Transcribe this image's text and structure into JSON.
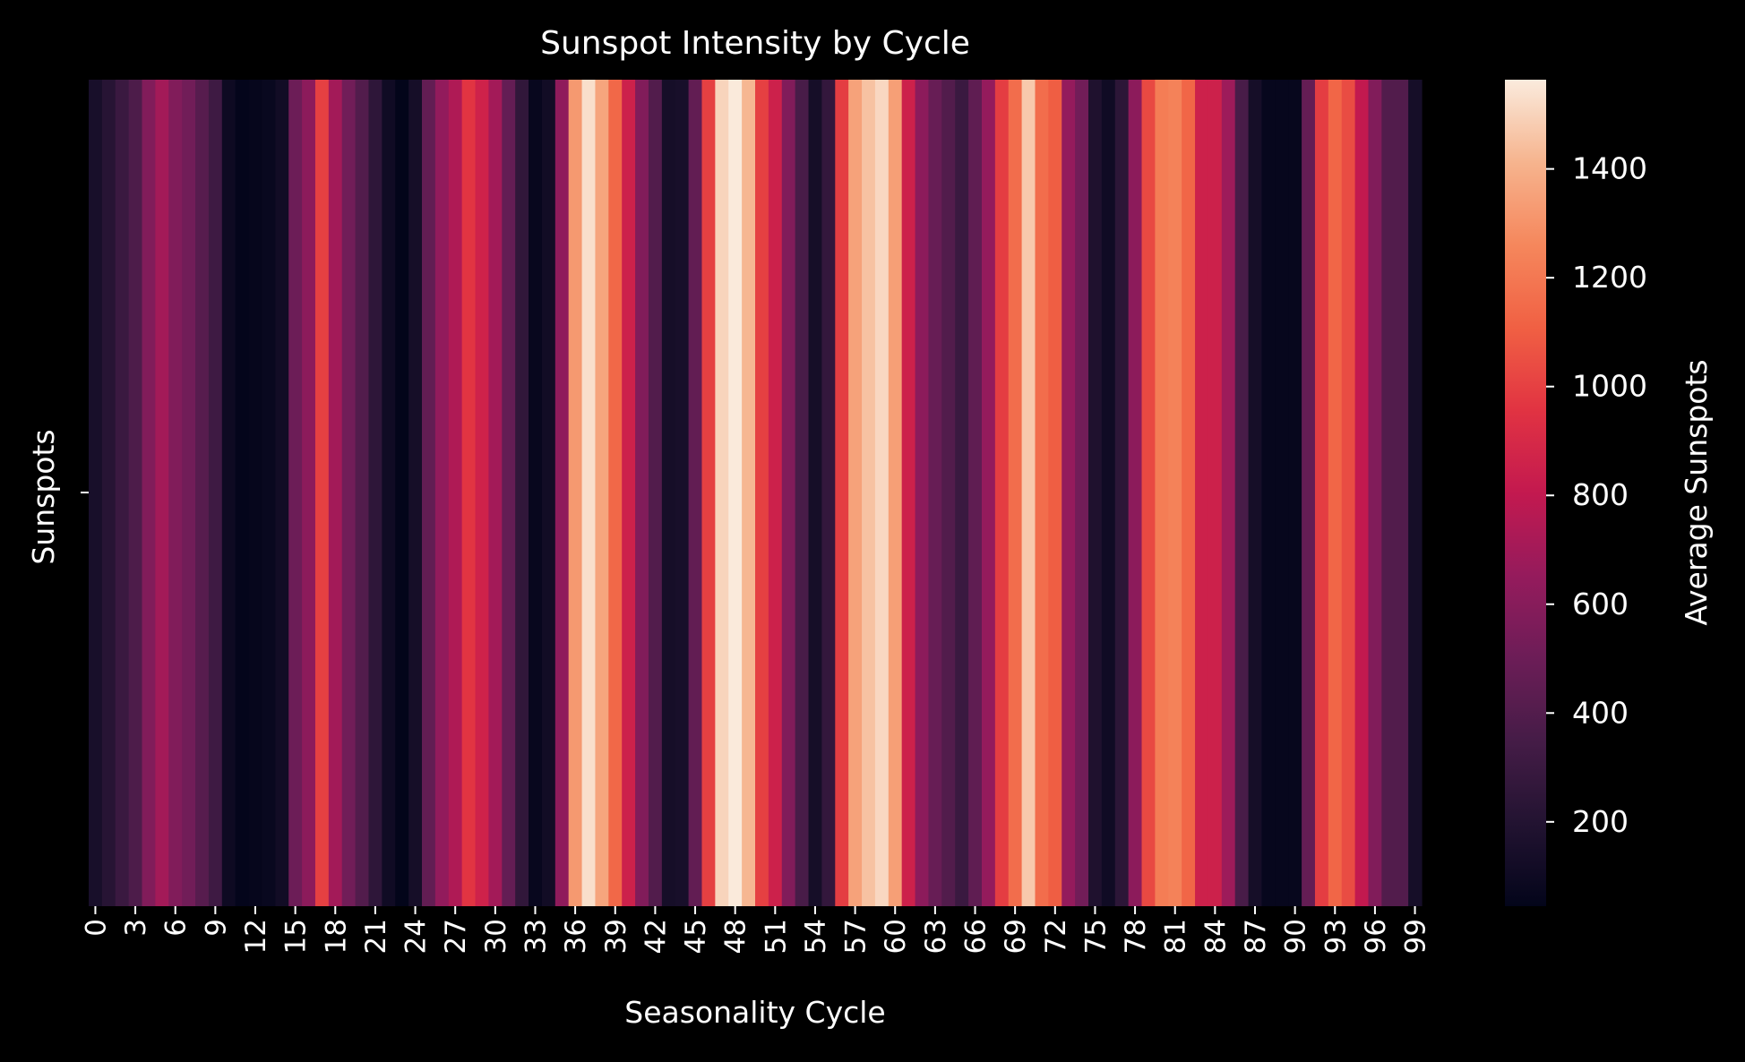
{
  "chart_data": {
    "type": "heatmap",
    "title": "Sunspot Intensity by Cycle",
    "xlabel": "Seasonality Cycle",
    "ylabel": "Sunspots",
    "colorbar_label": "Average Sunspots",
    "colormap": "rocket",
    "vmin": 45,
    "vmax": 1564,
    "colorbar_ticks": [
      200,
      400,
      600,
      800,
      1000,
      1200,
      1400
    ],
    "x_tick_labels": [
      "0",
      "3",
      "6",
      "9",
      "12",
      "15",
      "18",
      "21",
      "24",
      "27",
      "30",
      "33",
      "36",
      "39",
      "42",
      "45",
      "48",
      "51",
      "54",
      "57",
      "60",
      "63",
      "66",
      "69",
      "72",
      "75",
      "78",
      "81",
      "84",
      "87",
      "90",
      "93",
      "96",
      "99"
    ],
    "x": [
      0,
      1,
      2,
      3,
      4,
      5,
      6,
      7,
      8,
      9,
      10,
      11,
      12,
      13,
      14,
      15,
      16,
      17,
      18,
      19,
      20,
      21,
      22,
      23,
      24,
      25,
      26,
      27,
      28,
      29,
      30,
      31,
      32,
      33,
      34,
      35,
      36,
      37,
      38,
      39,
      40,
      41,
      42,
      43,
      44,
      45,
      46,
      47,
      48,
      49,
      50,
      51,
      52,
      53,
      54,
      55,
      56,
      57,
      58,
      59,
      60,
      61,
      62,
      63,
      64,
      65,
      66,
      67,
      68,
      69,
      70,
      71,
      72,
      73,
      74,
      75,
      76,
      77,
      78,
      79,
      80,
      81,
      82,
      83,
      84,
      85,
      86,
      87,
      88,
      89,
      90,
      91,
      92,
      93,
      94,
      95,
      96,
      97,
      98,
      99
    ],
    "values": [
      150,
      220,
      300,
      380,
      580,
      700,
      580,
      520,
      420,
      320,
      100,
      50,
      60,
      75,
      120,
      500,
      620,
      1000,
      700,
      520,
      400,
      250,
      110,
      45,
      140,
      460,
      640,
      740,
      960,
      860,
      700,
      470,
      260,
      70,
      120,
      630,
      1320,
      1530,
      1360,
      1140,
      850,
      580,
      400,
      140,
      150,
      460,
      1000,
      1500,
      1560,
      1420,
      1000,
      850,
      580,
      360,
      140,
      270,
      990,
      1350,
      1450,
      1510,
      1340,
      850,
      620,
      480,
      400,
      300,
      450,
      650,
      990,
      1160,
      1470,
      1160,
      1100,
      650,
      520,
      180,
      110,
      240,
      620,
      1030,
      1220,
      1240,
      1130,
      850,
      850,
      680,
      360,
      140,
      65,
      65,
      65,
      470,
      990,
      1130,
      1040,
      800,
      580,
      400,
      400,
      140
    ],
    "grid": false
  }
}
